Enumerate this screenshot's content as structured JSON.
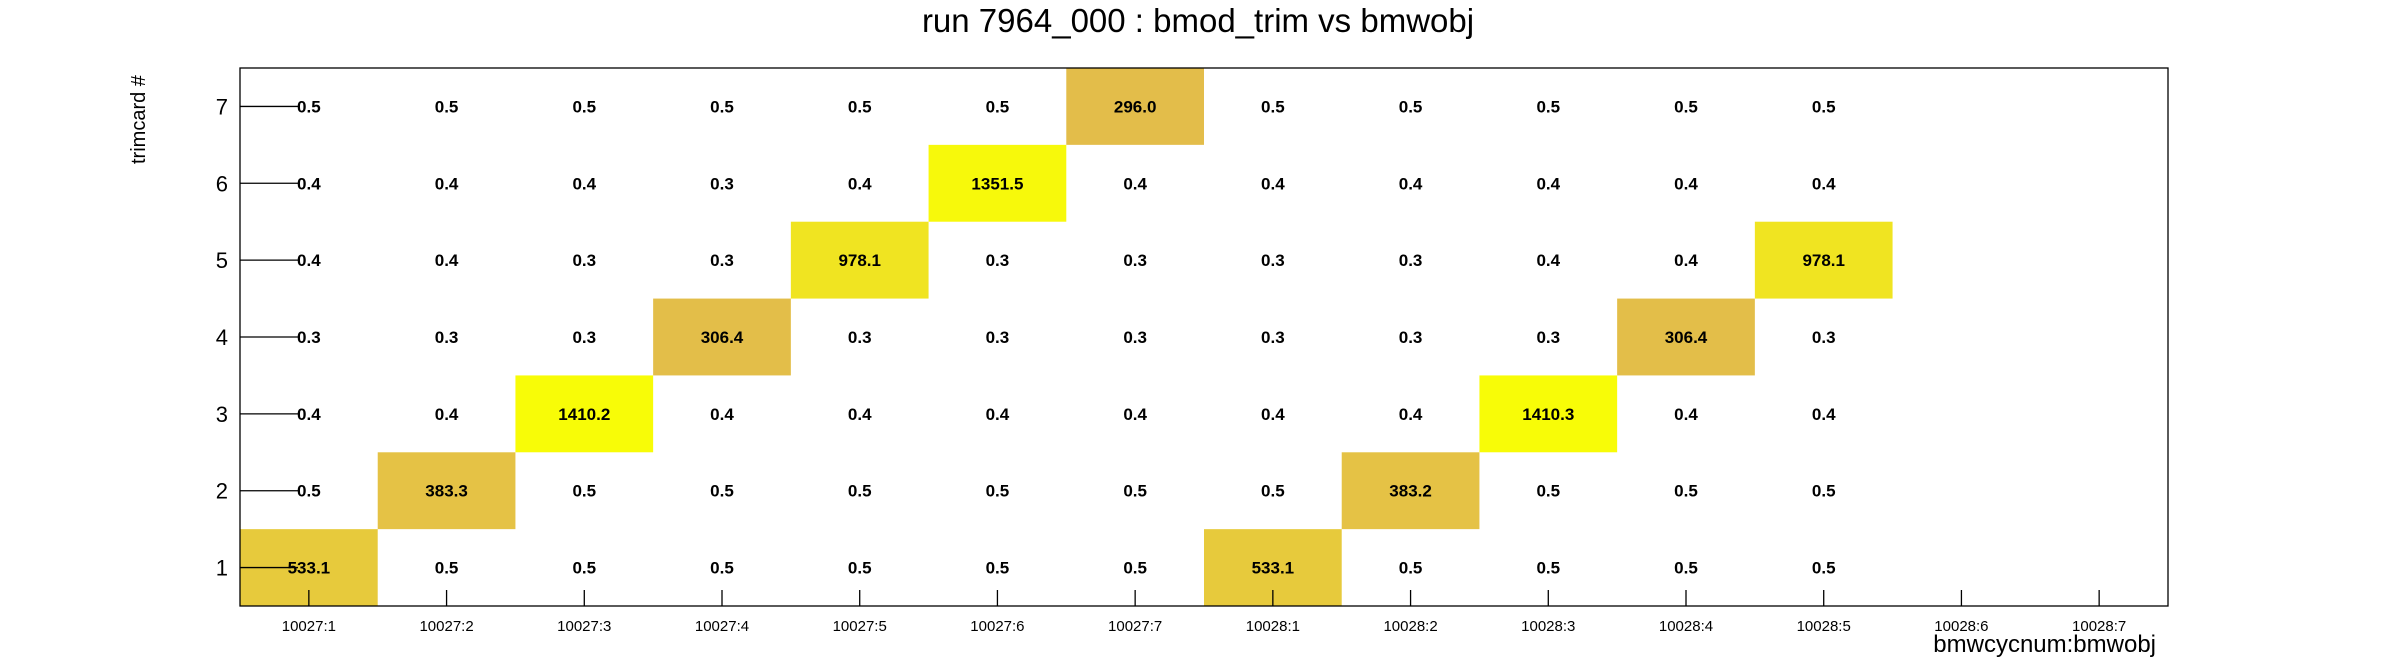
{
  "chart_data": {
    "type": "heatmap",
    "title": "run 7964_000 : bmod_trim vs bmwobj",
    "xlabel": "bmwcycnum:bmwobj",
    "ylabel": "trimcard #",
    "x_categories": [
      "10027:1",
      "10027:2",
      "10027:3",
      "10027:4",
      "10027:5",
      "10027:6",
      "10027:7",
      "10028:1",
      "10028:2",
      "10028:3",
      "10028:4",
      "10028:5",
      "10028:6",
      "10028:7"
    ],
    "y_categories": [
      "1",
      "2",
      "3",
      "4",
      "5",
      "6",
      "7"
    ],
    "values": [
      [
        "533.1",
        "0.5",
        "0.5",
        "0.5",
        "0.5",
        "0.5",
        "0.5",
        "533.1",
        "0.5",
        "0.5",
        "0.5",
        "0.5",
        null,
        null
      ],
      [
        "0.5",
        "383.3",
        "0.5",
        "0.5",
        "0.5",
        "0.5",
        "0.5",
        "0.5",
        "383.2",
        "0.5",
        "0.5",
        "0.5",
        null,
        null
      ],
      [
        "0.4",
        "0.4",
        "1410.2",
        "0.4",
        "0.4",
        "0.4",
        "0.4",
        "0.4",
        "0.4",
        "1410.3",
        "0.4",
        "0.4",
        null,
        null
      ],
      [
        "0.3",
        "0.3",
        "0.3",
        "306.4",
        "0.3",
        "0.3",
        "0.3",
        "0.3",
        "0.3",
        "0.3",
        "306.4",
        "0.3",
        null,
        null
      ],
      [
        "0.4",
        "0.4",
        "0.3",
        "0.3",
        "978.1",
        "0.3",
        "0.3",
        "0.3",
        "0.3",
        "0.4",
        "0.4",
        "978.1",
        null,
        null
      ],
      [
        "0.4",
        "0.4",
        "0.4",
        "0.3",
        "0.4",
        "1351.5",
        "0.4",
        "0.4",
        "0.4",
        "0.4",
        "0.4",
        "0.4",
        null,
        null
      ],
      [
        "0.5",
        "0.5",
        "0.5",
        "0.5",
        "0.5",
        "0.5",
        "296.0",
        "0.5",
        "0.5",
        "0.5",
        "0.5",
        "0.5",
        null,
        null
      ]
    ],
    "color_low": "#e3bd4a",
    "color_high": "#f8fc07"
  }
}
